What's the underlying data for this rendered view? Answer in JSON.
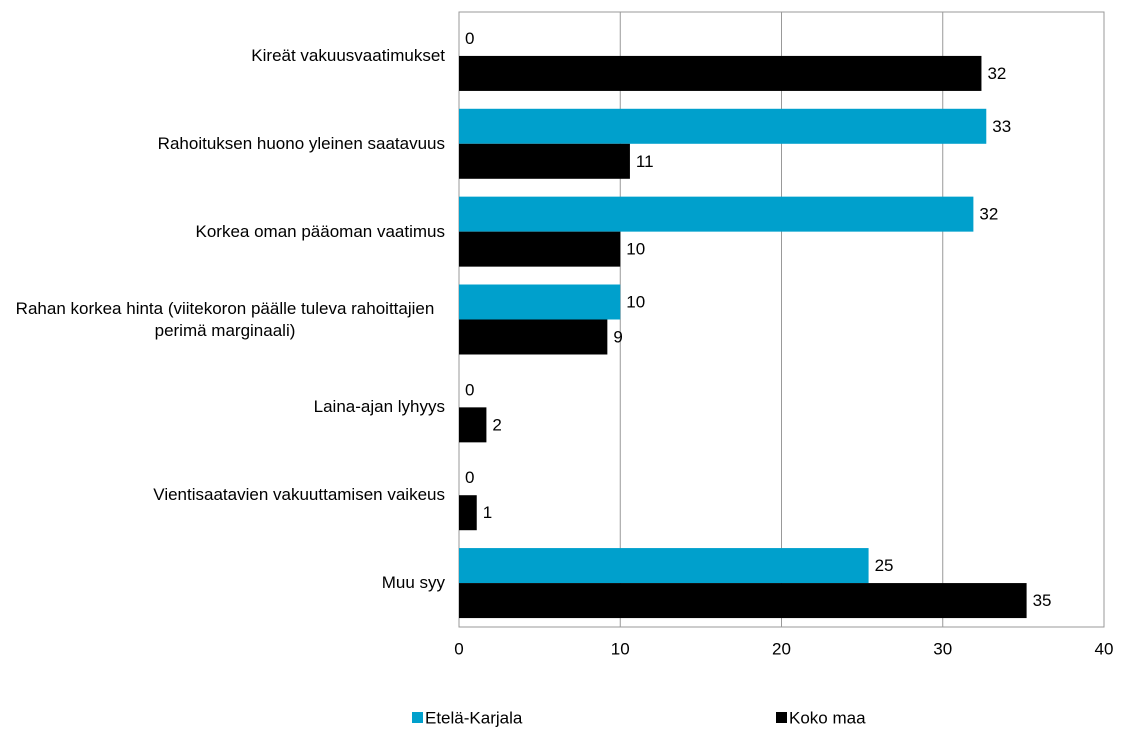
{
  "chart_data": {
    "type": "bar",
    "orientation": "horizontal",
    "categories": [
      "Kireät vakuusvaatimukset",
      "Rahoituksen huono yleinen saatavuus",
      "Korkea oman pääoman vaatimus",
      "Rahan korkea hinta (viitekoron päälle tuleva rahoittajien perimä marginaali)",
      "Laina-ajan lyhyys",
      "Vientisaatavien vakuuttamisen vaikeus",
      "Muu syy"
    ],
    "series": [
      {
        "name": "Etelä-Karjala",
        "color": "#00a0cc",
        "values": [
          0,
          32.7,
          31.9,
          10.0,
          0,
          0,
          25.4
        ],
        "value_labels": [
          "0",
          "33",
          "32",
          "10",
          "0",
          "0",
          "25"
        ]
      },
      {
        "name": "Koko maa",
        "color": "#000000",
        "values": [
          32.4,
          10.6,
          10.0,
          9.2,
          1.7,
          1.1,
          35.2
        ],
        "value_labels": [
          "32",
          "11",
          "10",
          "9",
          "2",
          "1",
          "35"
        ]
      }
    ],
    "xlim": [
      0,
      40
    ],
    "xticks": [
      0,
      10,
      20,
      30,
      40
    ],
    "grid": true,
    "legend": "bottom"
  }
}
